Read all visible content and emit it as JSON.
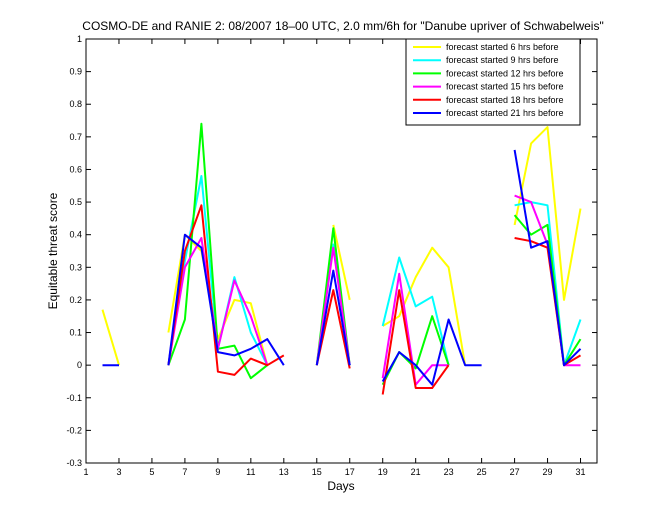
{
  "chart_data": {
    "type": "line",
    "title": "COSMO-DE and RANIE 2: 08/2007 18–00 UTC, 2.0 mm/6h for \"Danube upriver of Schwabelweis\"",
    "xlabel": "Days",
    "ylabel": "Equitable threat score",
    "xlim": [
      1,
      32
    ],
    "ylim": [
      -0.3,
      1
    ],
    "xticks": [
      1,
      3,
      5,
      7,
      9,
      11,
      13,
      15,
      17,
      19,
      21,
      23,
      25,
      27,
      29,
      31
    ],
    "yticks": [
      -0.3,
      -0.2,
      -0.1,
      0,
      0.1,
      0.2,
      0.3,
      0.4,
      0.5,
      0.6,
      0.7,
      0.8,
      0.9,
      1
    ],
    "ytick_labels": [
      "-0.3",
      "-0.2",
      "-0.1",
      "0",
      "0.1",
      "0.2",
      "0.3",
      "0.4",
      "0.5",
      "0.6",
      "0.7",
      "0.8",
      "0.9",
      "1"
    ],
    "legend_position": "top-right",
    "grid": false,
    "series": [
      {
        "name": "forecast started 6 hrs before",
        "color": "#ffff00",
        "values": [
          [
            2,
            0.17
          ],
          [
            3,
            0.0
          ],
          null,
          [
            6,
            0.1
          ],
          [
            7,
            0.4
          ],
          [
            8,
            0.35
          ],
          [
            9,
            0.08
          ],
          [
            10,
            0.2
          ],
          [
            11,
            0.19
          ],
          [
            12,
            0.0
          ],
          null,
          [
            16,
            0.43
          ],
          [
            17,
            0.2
          ],
          null,
          [
            19,
            0.12
          ],
          [
            20,
            0.15
          ],
          [
            21,
            0.27
          ],
          [
            22,
            0.36
          ],
          [
            23,
            0.3
          ],
          [
            24,
            0.0
          ],
          null,
          [
            27,
            0.43
          ],
          [
            28,
            0.68
          ],
          [
            29,
            0.73
          ],
          [
            30,
            0.2
          ],
          [
            31,
            0.48
          ]
        ]
      },
      {
        "name": "forecast started 9 hrs before",
        "color": "#00ffff",
        "values": [
          [
            6,
            0.0
          ],
          [
            7,
            0.32
          ],
          [
            8,
            0.58
          ],
          [
            9,
            0.05
          ],
          [
            10,
            0.27
          ],
          [
            11,
            0.1
          ],
          [
            12,
            0.0
          ],
          null,
          [
            15,
            0.0
          ],
          [
            16,
            0.37
          ],
          [
            17,
            0.0
          ],
          null,
          [
            19,
            0.12
          ],
          [
            20,
            0.33
          ],
          [
            21,
            0.18
          ],
          [
            22,
            0.21
          ],
          [
            23,
            0.0
          ],
          null,
          [
            27,
            0.49
          ],
          [
            28,
            0.5
          ],
          [
            29,
            0.49
          ],
          [
            30,
            0.0
          ],
          [
            31,
            0.14
          ]
        ]
      },
      {
        "name": "forecast started 12 hrs before",
        "color": "#00ff00",
        "values": [
          [
            6,
            0.0
          ],
          [
            7,
            0.14
          ],
          [
            8,
            0.74
          ],
          [
            9,
            0.05
          ],
          [
            10,
            0.06
          ],
          [
            11,
            -0.04
          ],
          [
            12,
            0.0
          ],
          null,
          [
            15,
            0.0
          ],
          [
            16,
            0.42
          ],
          [
            17,
            0.0
          ],
          null,
          [
            19,
            -0.06
          ],
          [
            20,
            0.04
          ],
          [
            21,
            -0.01
          ],
          [
            22,
            0.15
          ],
          [
            23,
            0.0
          ],
          null,
          [
            27,
            0.46
          ],
          [
            28,
            0.4
          ],
          [
            29,
            0.43
          ],
          [
            30,
            0.0
          ],
          [
            31,
            0.08
          ]
        ]
      },
      {
        "name": "forecast started 15 hrs before",
        "color": "#ff00ff",
        "values": [
          [
            6,
            0.0
          ],
          [
            7,
            0.3
          ],
          [
            8,
            0.39
          ],
          [
            9,
            0.05
          ],
          [
            10,
            0.26
          ],
          [
            11,
            0.15
          ],
          [
            12,
            0.0
          ],
          null,
          [
            15,
            0.0
          ],
          [
            16,
            0.36
          ],
          [
            17,
            0.0
          ],
          null,
          [
            19,
            -0.04
          ],
          [
            20,
            0.28
          ],
          [
            21,
            -0.06
          ],
          [
            22,
            0.0
          ],
          [
            23,
            0.0
          ],
          null,
          [
            27,
            0.52
          ],
          [
            28,
            0.5
          ],
          [
            29,
            0.37
          ],
          [
            30,
            0.0
          ],
          [
            31,
            0.0
          ]
        ]
      },
      {
        "name": "forecast started 18 hrs before",
        "color": "#ff0000",
        "values": [
          [
            6,
            0.0
          ],
          [
            7,
            0.35
          ],
          [
            8,
            0.49
          ],
          [
            9,
            -0.02
          ],
          [
            10,
            -0.03
          ],
          [
            11,
            0.02
          ],
          [
            12,
            0.0
          ],
          [
            13,
            0.03
          ],
          null,
          [
            15,
            0.0
          ],
          [
            16,
            0.23
          ],
          [
            17,
            -0.01
          ],
          null,
          [
            19,
            -0.09
          ],
          [
            20,
            0.23
          ],
          [
            21,
            -0.07
          ],
          [
            22,
            -0.07
          ],
          [
            23,
            0.0
          ],
          null,
          [
            27,
            0.39
          ],
          [
            28,
            0.38
          ],
          [
            29,
            0.36
          ],
          [
            30,
            0.0
          ],
          [
            31,
            0.03
          ]
        ]
      },
      {
        "name": "forecast started 21 hrs before",
        "color": "#0000ff",
        "values": [
          [
            2,
            0.0
          ],
          [
            3,
            0.0
          ],
          null,
          [
            6,
            0.0
          ],
          [
            7,
            0.4
          ],
          [
            8,
            0.36
          ],
          [
            9,
            0.04
          ],
          [
            10,
            0.03
          ],
          [
            11,
            0.05
          ],
          [
            12,
            0.08
          ],
          [
            13,
            0.0
          ],
          null,
          [
            15,
            0.0
          ],
          [
            16,
            0.29
          ],
          [
            17,
            0.0
          ],
          null,
          [
            19,
            -0.05
          ],
          [
            20,
            0.04
          ],
          [
            21,
            0.0
          ],
          [
            22,
            -0.06
          ],
          [
            23,
            0.14
          ],
          [
            24,
            0.0
          ],
          [
            25,
            0.0
          ],
          null,
          [
            27,
            0.66
          ],
          [
            28,
            0.36
          ],
          [
            29,
            0.38
          ],
          [
            30,
            0.0
          ],
          [
            31,
            0.05
          ]
        ]
      }
    ]
  }
}
